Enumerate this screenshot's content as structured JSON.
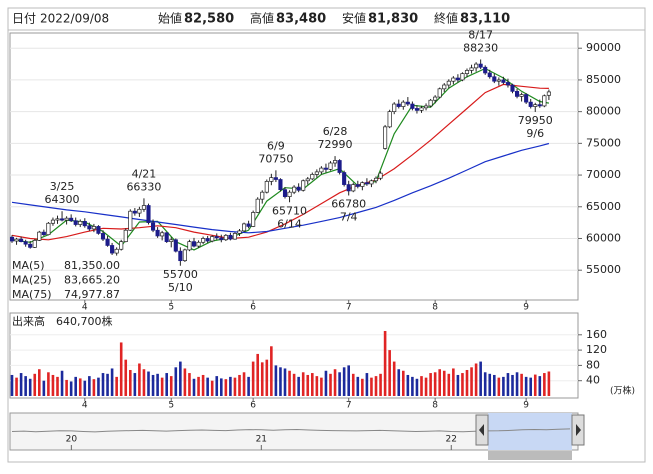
{
  "header": {
    "date_label": "日付",
    "date": "2022/09/08",
    "fields": [
      {
        "label": "始値",
        "value": "82,580",
        "color": "#111111"
      },
      {
        "label": "高値",
        "value": "83,480",
        "color": "#d01010"
      },
      {
        "label": "安値",
        "value": "81,830",
        "color": "#138a13"
      },
      {
        "label": "終値",
        "value": "83,110",
        "color": "#111111"
      }
    ]
  },
  "chart_data": {
    "type": "candlestick",
    "ohlc": [
      [
        60200,
        60500,
        59300,
        59600
      ],
      [
        59600,
        60100,
        59000,
        59900
      ],
      [
        59900,
        60300,
        59400,
        59500
      ],
      [
        59500,
        59800,
        58700,
        59100
      ],
      [
        59100,
        59600,
        58400,
        58600
      ],
      [
        58600,
        59900,
        58500,
        59700
      ],
      [
        59700,
        61200,
        59600,
        61000
      ],
      [
        61000,
        61400,
        60400,
        60600
      ],
      [
        60600,
        62600,
        60500,
        62400
      ],
      [
        62400,
        63300,
        62000,
        62900
      ],
      [
        62900,
        63600,
        62300,
        63100
      ],
      [
        63100,
        64300,
        62700,
        62900
      ],
      [
        62900,
        63500,
        62200,
        63200
      ],
      [
        63200,
        63800,
        62600,
        62800
      ],
      [
        62800,
        63300,
        61900,
        62200
      ],
      [
        62200,
        63000,
        61800,
        62700
      ],
      [
        62700,
        63200,
        61700,
        62000
      ],
      [
        62000,
        62500,
        61200,
        61500
      ],
      [
        61500,
        62300,
        61000,
        61900
      ],
      [
        61900,
        62100,
        60600,
        60800
      ],
      [
        60800,
        61300,
        59600,
        59900
      ],
      [
        59900,
        60400,
        58700,
        58900
      ],
      [
        58900,
        59300,
        57400,
        57700
      ],
      [
        57700,
        58600,
        57300,
        58300
      ],
      [
        58300,
        59800,
        58100,
        59500
      ],
      [
        59500,
        61600,
        59400,
        61300
      ],
      [
        61300,
        64600,
        61200,
        64300
      ],
      [
        64300,
        64800,
        63600,
        64000
      ],
      [
        64000,
        65000,
        63400,
        64600
      ],
      [
        64600,
        66330,
        64200,
        65200
      ],
      [
        65200,
        65500,
        62200,
        62500
      ],
      [
        62500,
        63000,
        61000,
        61300
      ],
      [
        61300,
        61800,
        60100,
        60400
      ],
      [
        60400,
        61200,
        59700,
        60900
      ],
      [
        60900,
        61000,
        59300,
        59500
      ],
      [
        59500,
        60200,
        58600,
        59800
      ],
      [
        59800,
        60000,
        57800,
        58000
      ],
      [
        58000,
        58600,
        55700,
        56500
      ],
      [
        56500,
        58400,
        56300,
        58200
      ],
      [
        58200,
        59800,
        58000,
        59500
      ],
      [
        59500,
        60100,
        58600,
        58800
      ],
      [
        58800,
        59700,
        58500,
        59400
      ],
      [
        59400,
        60300,
        59100,
        60000
      ],
      [
        60000,
        60400,
        59300,
        59600
      ],
      [
        59600,
        60500,
        59400,
        60300
      ],
      [
        60300,
        60800,
        59800,
        60100
      ],
      [
        60100,
        60600,
        59400,
        59800
      ],
      [
        59800,
        60700,
        59600,
        60500
      ],
      [
        60500,
        60900,
        59700,
        59900
      ],
      [
        59900,
        61000,
        59800,
        60800
      ],
      [
        60800,
        61500,
        60400,
        61200
      ],
      [
        61200,
        62500,
        61000,
        62300
      ],
      [
        62300,
        62800,
        61600,
        61900
      ],
      [
        61900,
        64400,
        61800,
        64100
      ],
      [
        64100,
        66500,
        64000,
        66200
      ],
      [
        66200,
        67600,
        65500,
        67300
      ],
      [
        67300,
        69300,
        67100,
        69000
      ],
      [
        69000,
        70200,
        68400,
        69600
      ],
      [
        69600,
        70750,
        68900,
        69300
      ],
      [
        69300,
        69500,
        67400,
        67700
      ],
      [
        67700,
        68100,
        66300,
        66600
      ],
      [
        66600,
        67600,
        65710,
        67300
      ],
      [
        67300,
        68400,
        67000,
        68100
      ],
      [
        68100,
        68700,
        67300,
        67600
      ],
      [
        67600,
        69300,
        67400,
        69100
      ],
      [
        69100,
        69700,
        68500,
        69400
      ],
      [
        69400,
        70400,
        69200,
        70100
      ],
      [
        70100,
        70900,
        69600,
        70500
      ],
      [
        70500,
        71400,
        70100,
        71100
      ],
      [
        71100,
        71800,
        70400,
        70900
      ],
      [
        70900,
        72200,
        70700,
        71900
      ],
      [
        71900,
        72990,
        71300,
        72300
      ],
      [
        72300,
        72500,
        70100,
        70400
      ],
      [
        70400,
        70700,
        68200,
        68500
      ],
      [
        68500,
        69100,
        66780,
        67500
      ],
      [
        67500,
        68800,
        67300,
        68500
      ],
      [
        68500,
        69100,
        67900,
        68200
      ],
      [
        68200,
        69000,
        67600,
        68800
      ],
      [
        68800,
        69500,
        68300,
        68600
      ],
      [
        68600,
        69300,
        68100,
        69100
      ],
      [
        69100,
        69800,
        68700,
        69500
      ],
      [
        69500,
        70600,
        69200,
        70300
      ],
      [
        74200,
        77900,
        74000,
        77600
      ],
      [
        77600,
        80300,
        77400,
        80000
      ],
      [
        80000,
        81500,
        79600,
        81200
      ],
      [
        81200,
        81900,
        80500,
        80800
      ],
      [
        80800,
        81800,
        80300,
        81500
      ],
      [
        81500,
        82300,
        80900,
        81200
      ],
      [
        81200,
        81600,
        80200,
        80500
      ],
      [
        80500,
        81000,
        79700,
        80200
      ],
      [
        80200,
        80900,
        79800,
        80600
      ],
      [
        80600,
        81300,
        80200,
        80900
      ],
      [
        80900,
        82000,
        80700,
        81800
      ],
      [
        81800,
        82600,
        81300,
        82300
      ],
      [
        82300,
        83800,
        82100,
        83600
      ],
      [
        83600,
        84500,
        83100,
        84200
      ],
      [
        84200,
        85100,
        83700,
        84800
      ],
      [
        84800,
        85600,
        84300,
        85300
      ],
      [
        85300,
        85900,
        84600,
        85000
      ],
      [
        85000,
        86200,
        84800,
        86000
      ],
      [
        86000,
        86800,
        85400,
        86500
      ],
      [
        86500,
        87400,
        86000,
        86900
      ],
      [
        86900,
        87800,
        86300,
        87500
      ],
      [
        87500,
        88230,
        86700,
        87000
      ],
      [
        87000,
        87300,
        85800,
        86100
      ],
      [
        86100,
        86600,
        85200,
        85500
      ],
      [
        85500,
        86000,
        84500,
        84800
      ],
      [
        84800,
        85400,
        84100,
        85000
      ],
      [
        85000,
        85500,
        84300,
        84600
      ],
      [
        84600,
        85200,
        83800,
        84200
      ],
      [
        84200,
        84400,
        82900,
        83200
      ],
      [
        83200,
        83600,
        82100,
        82400
      ],
      [
        82400,
        83000,
        81600,
        82700
      ],
      [
        82700,
        82900,
        81200,
        81500
      ],
      [
        81500,
        82000,
        80500,
        80800
      ],
      [
        80800,
        81400,
        79950,
        81100
      ],
      [
        81100,
        81900,
        80600,
        80900
      ],
      [
        80900,
        82700,
        80700,
        82500
      ],
      [
        82580,
        83480,
        81830,
        83110
      ]
    ],
    "up_color": "#ffffff",
    "down_color": "#1c1c8a",
    "ylim": [
      50300,
      92400
    ],
    "yticks": [
      55000,
      60000,
      65000,
      70000,
      75000,
      80000,
      85000,
      90000
    ],
    "grid": true,
    "xticks": [
      {
        "value": 16,
        "label": "4"
      },
      {
        "value": 35,
        "label": "5"
      },
      {
        "value": 53,
        "label": "6"
      },
      {
        "value": 74,
        "label": "7"
      },
      {
        "value": 93,
        "label": "8"
      },
      {
        "value": 113,
        "label": "9"
      }
    ],
    "series": [
      {
        "name": "MA(5)",
        "color": "#1f8a1f",
        "value_label": "81,350.00",
        "x": [
          0,
          4,
          8,
          12,
          16,
          20,
          24,
          28,
          32,
          36,
          40,
          44,
          48,
          52,
          56,
          60,
          64,
          68,
          72,
          76,
          80,
          84,
          88,
          92,
          96,
          100,
          104,
          108,
          112,
          116,
          118
        ],
        "values": [
          59800,
          59400,
          60600,
          62900,
          62600,
          61100,
          58800,
          62600,
          62700,
          59500,
          58200,
          59600,
          60100,
          61300,
          65900,
          68000,
          67800,
          70100,
          71000,
          68300,
          69000,
          76500,
          81000,
          80700,
          83700,
          85500,
          86800,
          85300,
          83200,
          81600,
          81350
        ]
      },
      {
        "name": "MA(25)",
        "color": "#d81b1b",
        "value_label": "83,665.20",
        "x": [
          0,
          4,
          8,
          12,
          16,
          20,
          24,
          28,
          32,
          36,
          40,
          44,
          48,
          52,
          56,
          60,
          64,
          68,
          72,
          76,
          80,
          84,
          88,
          92,
          96,
          100,
          104,
          108,
          112,
          116,
          118
        ],
        "values": [
          60500,
          60000,
          59800,
          60300,
          61000,
          61600,
          61500,
          61700,
          62000,
          61700,
          61000,
          60500,
          60000,
          60200,
          61000,
          62300,
          63800,
          65500,
          67200,
          68400,
          69200,
          71000,
          73200,
          75500,
          78000,
          80500,
          83000,
          84300,
          84000,
          83700,
          83665.2
        ]
      },
      {
        "name": "MA(75)",
        "color": "#1830c8",
        "value_label": "74,977.87",
        "x": [
          0,
          4,
          8,
          12,
          16,
          20,
          24,
          28,
          32,
          36,
          40,
          44,
          48,
          52,
          56,
          60,
          64,
          68,
          72,
          76,
          80,
          84,
          88,
          92,
          96,
          100,
          104,
          108,
          112,
          116,
          118
        ],
        "values": [
          65700,
          65300,
          64900,
          64500,
          64200,
          63800,
          63400,
          63000,
          62600,
          62200,
          61800,
          61400,
          61100,
          60900,
          61100,
          61600,
          62100,
          62700,
          63300,
          64100,
          64900,
          66000,
          67200,
          68300,
          69500,
          70800,
          72100,
          73000,
          73900,
          74600,
          74977.87
        ]
      }
    ],
    "annotations": [
      {
        "date": "3/25",
        "value": 64300,
        "x": 11,
        "side": "above"
      },
      {
        "date": "4/21",
        "value": 66330,
        "x": 29,
        "side": "above"
      },
      {
        "date": "5/10",
        "value": 55700,
        "x": 37,
        "side": "below"
      },
      {
        "date": "6/9",
        "value": 70750,
        "x": 58,
        "side": "above"
      },
      {
        "date": "6/14",
        "value": 65710,
        "x": 61,
        "side": "below"
      },
      {
        "date": "6/28",
        "value": 72990,
        "x": 71,
        "side": "above"
      },
      {
        "date": "7/4",
        "value": 66780,
        "x": 74,
        "side": "below"
      },
      {
        "date": "8/17",
        "value": 88230,
        "x": 103,
        "side": "above"
      },
      {
        "date": "9/6",
        "value": 79950,
        "x": 115,
        "side": "below"
      }
    ],
    "volume": {
      "label": "出来高",
      "value_label": "640,700株",
      "unit": "(万株)",
      "up_color": "#e02424",
      "down_color": "#1c2a9c",
      "ylim": [
        0,
        217
      ],
      "yticks": [
        40,
        80,
        120,
        160
      ],
      "values": [
        55,
        48,
        60,
        52,
        45,
        58,
        70,
        40,
        62,
        55,
        50,
        66,
        42,
        38,
        50,
        46,
        40,
        52,
        44,
        48,
        60,
        58,
        72,
        50,
        140,
        95,
        68,
        60,
        85,
        70,
        64,
        55,
        58,
        48,
        60,
        52,
        75,
        90,
        72,
        60,
        45,
        50,
        55,
        48,
        40,
        52,
        46,
        44,
        50,
        48,
        55,
        62,
        50,
        90,
        110,
        88,
        95,
        130,
        80,
        75,
        72,
        66,
        58,
        50,
        62,
        55,
        60,
        52,
        48,
        66,
        58,
        70,
        62,
        75,
        80,
        58,
        50,
        45,
        60,
        48,
        52,
        58,
        170,
        120,
        90,
        70,
        66,
        55,
        50,
        45,
        52,
        48,
        60,
        62,
        70,
        66,
        58,
        72,
        55,
        60,
        68,
        75,
        85,
        90,
        62,
        58,
        55,
        48,
        50,
        60,
        55,
        62,
        58,
        50,
        48,
        56,
        52,
        60,
        64.07
      ]
    },
    "navigator": {
      "xlim": [
        0,
        47
      ],
      "ylim": [
        0,
        100000
      ],
      "xticks": [
        {
          "value": 5,
          "label": "20"
        },
        {
          "value": 21,
          "label": "21"
        },
        {
          "value": 37,
          "label": "22"
        }
      ],
      "values": [
        50000,
        51000,
        49500,
        50500,
        52000,
        51500,
        50000,
        49000,
        50500,
        51500,
        52500,
        53000,
        52000,
        51000,
        52500,
        53500,
        54000,
        53000,
        52500,
        54000,
        55000,
        54500,
        53500,
        54500,
        55500,
        54000,
        53000,
        52500,
        52000,
        51500,
        52500,
        53000,
        52000,
        51000,
        50000,
        50500,
        51500,
        50000,
        49500,
        50500,
        51500,
        52000,
        53000,
        54500,
        55500,
        54500,
        56000,
        57000
      ]
    }
  }
}
